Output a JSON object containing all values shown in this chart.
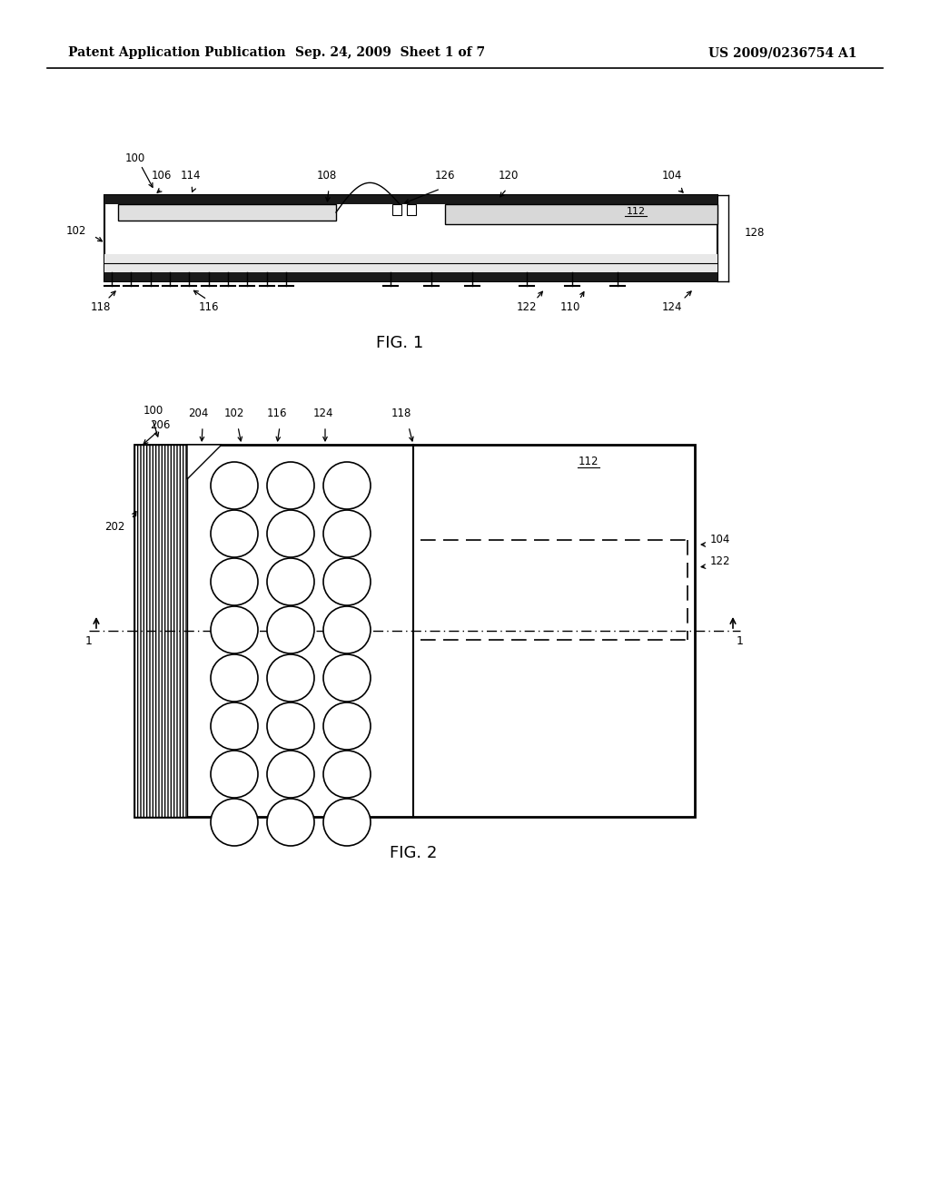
{
  "bg_color": "#ffffff",
  "header_left": "Patent Application Publication",
  "header_mid": "Sep. 24, 2009  Sheet 1 of 7",
  "header_right": "US 2009/0236754 A1",
  "fig1_caption": "FIG. 1",
  "fig2_caption": "FIG. 2",
  "page_width": 10.24,
  "page_height": 13.2
}
